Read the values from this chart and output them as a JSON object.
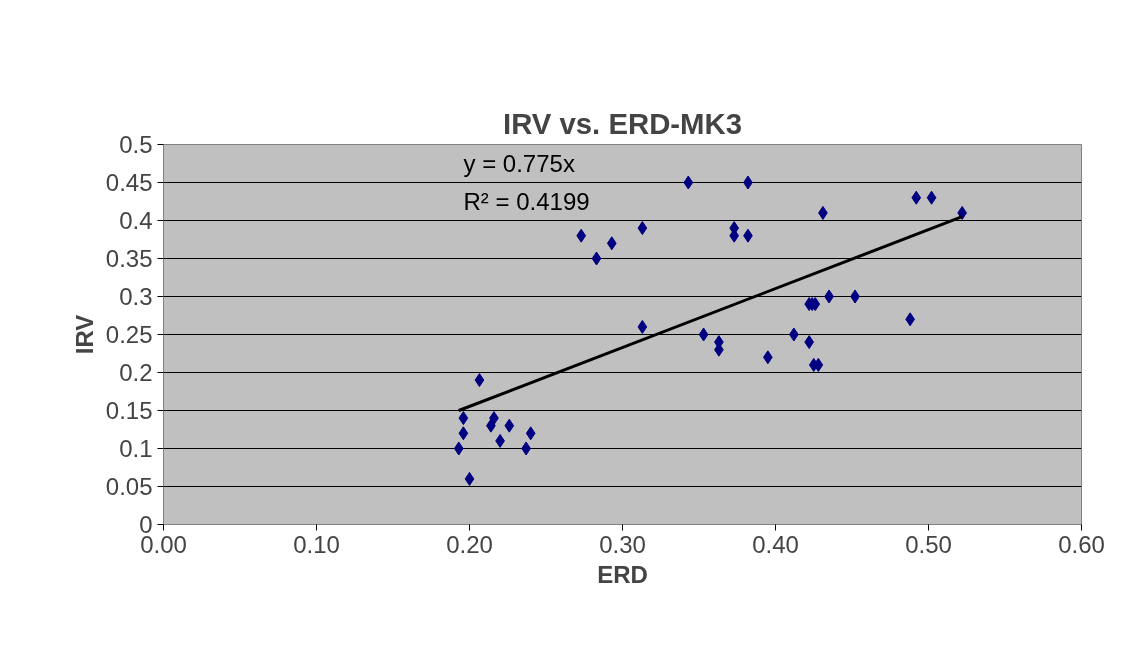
{
  "chart_data": {
    "type": "scatter",
    "title": "IRV vs. ERD-MK3",
    "xlabel": "ERD",
    "ylabel": "IRV",
    "annotations": [
      "y = 0.775x",
      "R² = 0.4199"
    ],
    "series": [
      {
        "type": "scatter",
        "color": "#000080",
        "marker": "diamond",
        "x": [
          0.2065,
          0.196,
          0.216,
          0.214,
          0.226,
          0.196,
          0.24,
          0.22,
          0.193,
          0.237,
          0.2,
          0.343,
          0.382,
          0.313,
          0.373,
          0.273,
          0.373,
          0.382,
          0.293,
          0.283,
          0.313,
          0.353,
          0.363,
          0.363,
          0.395,
          0.412,
          0.431,
          0.492,
          0.502,
          0.522,
          0.435,
          0.452,
          0.422,
          0.426,
          0.488,
          0.422,
          0.425,
          0.428,
          0.424
        ],
        "values": [
          0.19,
          0.14,
          0.14,
          0.13,
          0.13,
          0.12,
          0.12,
          0.11,
          0.1,
          0.1,
          0.06,
          0.45,
          0.45,
          0.39,
          0.39,
          0.38,
          0.38,
          0.38,
          0.37,
          0.35,
          0.26,
          0.25,
          0.24,
          0.23,
          0.22,
          0.25,
          0.41,
          0.43,
          0.43,
          0.41,
          0.3,
          0.3,
          0.29,
          0.29,
          0.27,
          0.24,
          0.21,
          0.21,
          0.29
        ]
      },
      {
        "type": "line",
        "color": "#000000",
        "x": [
          0.193,
          0.522
        ],
        "values": [
          0.15,
          0.405
        ]
      }
    ],
    "xlim": [
      0,
      0.6
    ],
    "ylim": [
      0,
      0.5
    ],
    "xticks": [
      {
        "value": 0,
        "label": "0.00"
      },
      {
        "value": 0.1,
        "label": "0.10"
      },
      {
        "value": 0.2,
        "label": "0.20"
      },
      {
        "value": 0.3,
        "label": "0.30"
      },
      {
        "value": 0.4,
        "label": "0.40"
      },
      {
        "value": 0.5,
        "label": "0.50"
      },
      {
        "value": 0.6,
        "label": "0.60"
      }
    ],
    "yticks": [
      0,
      0.05,
      0.1,
      0.15,
      0.2,
      0.25,
      0.3,
      0.35,
      0.4,
      0.45,
      0.5
    ],
    "grid": "y"
  }
}
